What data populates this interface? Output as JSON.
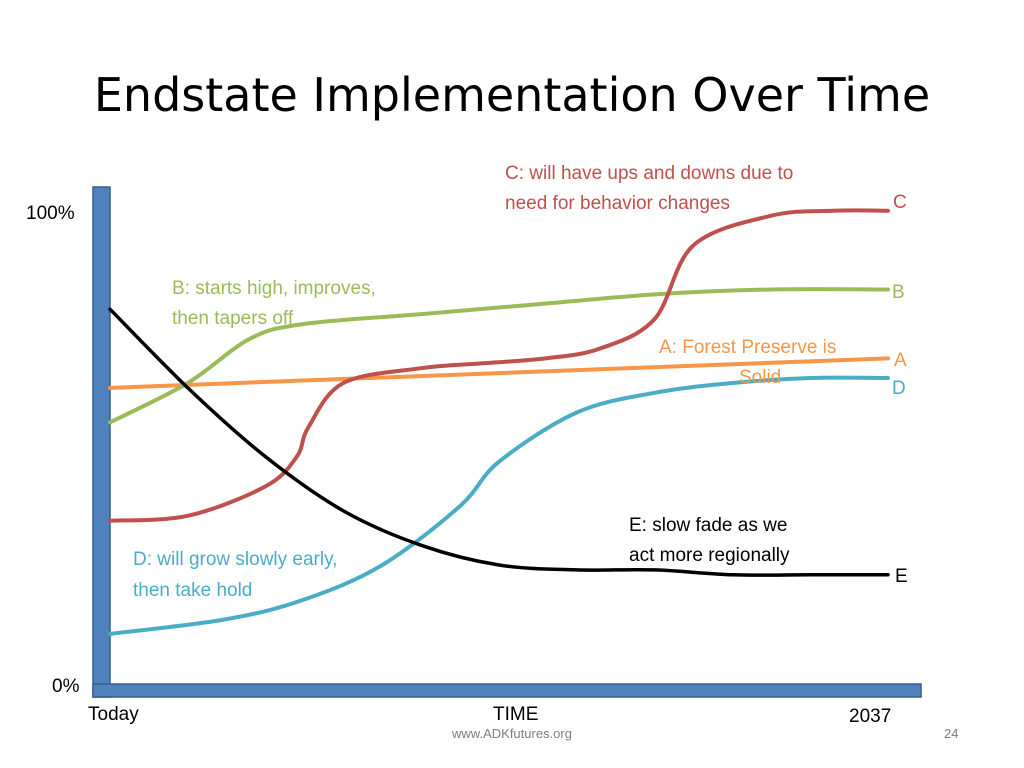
{
  "slide": {
    "title": "Endstate Implementation Over Time",
    "footer_site": "www.ADKfutures.org",
    "page_number": "24"
  },
  "chart_data": {
    "type": "line",
    "title": "Endstate Implementation Over Time",
    "xlabel": "TIME",
    "ylabel": "",
    "x_tick_labels": [
      "Today",
      "2037"
    ],
    "y_tick_labels": [
      "0%",
      "100%"
    ],
    "xlim": [
      0,
      100
    ],
    "ylim": [
      0,
      100
    ],
    "grid": false,
    "axis_color": "#4f81bd",
    "series": [
      {
        "name": "A",
        "color": "#f79646",
        "annotation": [
          "A: Forest Preserve is",
          "Solid"
        ],
        "x": [
          0,
          50,
          100
        ],
        "y": [
          61,
          64,
          67
        ]
      },
      {
        "name": "B",
        "color": "#9bbb59",
        "annotation": [
          "B: starts high, improves,",
          "then tapers off"
        ],
        "x": [
          0,
          10,
          18,
          25,
          40,
          55,
          70,
          85,
          100
        ],
        "y": [
          54,
          62,
          71,
          74,
          76,
          78,
          80,
          81,
          81
        ]
      },
      {
        "name": "C",
        "color": "#c0504d",
        "annotation": [
          "C: will have ups and downs due to",
          "need for behavior changes"
        ],
        "x": [
          0,
          10,
          20,
          24,
          25.5,
          30,
          40,
          48,
          56,
          63,
          70,
          75,
          85,
          93,
          100
        ],
        "y": [
          34,
          35,
          41,
          47,
          53,
          62,
          65,
          66,
          67,
          69,
          75,
          90,
          96,
          97,
          97
        ]
      },
      {
        "name": "D",
        "color": "#4bacc6",
        "annotation": [
          "D: will grow slowly early,",
          "then take hold"
        ],
        "x": [
          0,
          15,
          25,
          35,
          45,
          50,
          60,
          70,
          80,
          90,
          100
        ],
        "y": [
          11,
          14,
          18,
          25,
          37,
          46,
          56,
          60,
          62,
          63,
          63
        ]
      },
      {
        "name": "E",
        "color": "#000000",
        "annotation": [
          "E: slow fade as we",
          "act more regionally"
        ],
        "x": [
          0,
          10,
          20,
          30,
          40,
          50,
          60,
          70,
          80,
          90,
          100
        ],
        "y": [
          77,
          61,
          47,
          36,
          29,
          25,
          24,
          24,
          23,
          23,
          23
        ]
      }
    ]
  }
}
